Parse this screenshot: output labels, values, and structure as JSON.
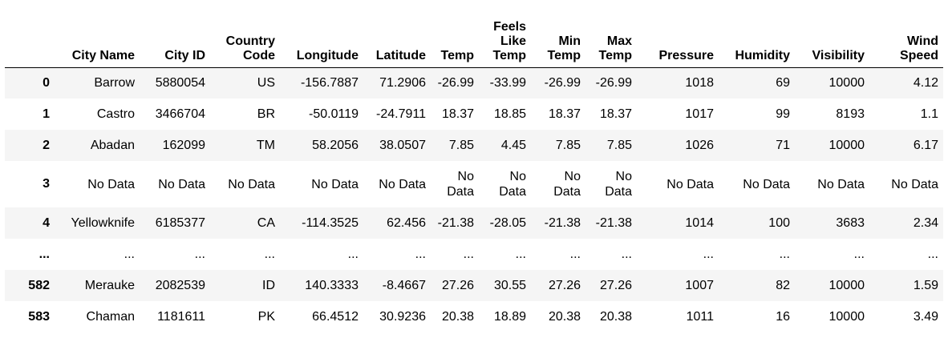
{
  "table": {
    "index_header": "",
    "columns": [
      "City Name",
      "City ID",
      "Country Code",
      "Longitude",
      "Latitude",
      "Temp",
      "Feels Like Temp",
      "Min Temp",
      "Max Temp",
      "Pressure",
      "Humidity",
      "Visibility",
      "Wind Speed"
    ],
    "rows": [
      {
        "index": "0",
        "cells": [
          "Barrow",
          "5880054",
          "US",
          "-156.7887",
          "71.2906",
          "-26.99",
          "-33.99",
          "-26.99",
          "-26.99",
          "1018",
          "69",
          "10000",
          "4.12"
        ]
      },
      {
        "index": "1",
        "cells": [
          "Castro",
          "3466704",
          "BR",
          "-50.0119",
          "-24.7911",
          "18.37",
          "18.85",
          "18.37",
          "18.37",
          "1017",
          "99",
          "8193",
          "1.1"
        ]
      },
      {
        "index": "2",
        "cells": [
          "Abadan",
          "162099",
          "TM",
          "58.2056",
          "38.0507",
          "7.85",
          "4.45",
          "7.85",
          "7.85",
          "1026",
          "71",
          "10000",
          "6.17"
        ]
      },
      {
        "index": "3",
        "cells": [
          "No Data",
          "No Data",
          "No Data",
          "No Data",
          "No Data",
          "No Data",
          "No Data",
          "No Data",
          "No Data",
          "No Data",
          "No Data",
          "No Data",
          "No Data"
        ]
      },
      {
        "index": "4",
        "cells": [
          "Yellowknife",
          "6185377",
          "CA",
          "-114.3525",
          "62.456",
          "-21.38",
          "-28.05",
          "-21.38",
          "-21.38",
          "1014",
          "100",
          "3683",
          "2.34"
        ]
      },
      {
        "index": "...",
        "cells": [
          "...",
          "...",
          "...",
          "...",
          "...",
          "...",
          "...",
          "...",
          "...",
          "...",
          "...",
          "...",
          "..."
        ]
      },
      {
        "index": "582",
        "cells": [
          "Merauke",
          "2082539",
          "ID",
          "140.3333",
          "-8.4667",
          "27.26",
          "30.55",
          "27.26",
          "27.26",
          "1007",
          "82",
          "10000",
          "1.59"
        ]
      },
      {
        "index": "583",
        "cells": [
          "Chaman",
          "1181611",
          "PK",
          "66.4512",
          "30.9236",
          "20.38",
          "18.89",
          "20.38",
          "20.38",
          "1011",
          "16",
          "10000",
          "3.49"
        ]
      }
    ]
  }
}
